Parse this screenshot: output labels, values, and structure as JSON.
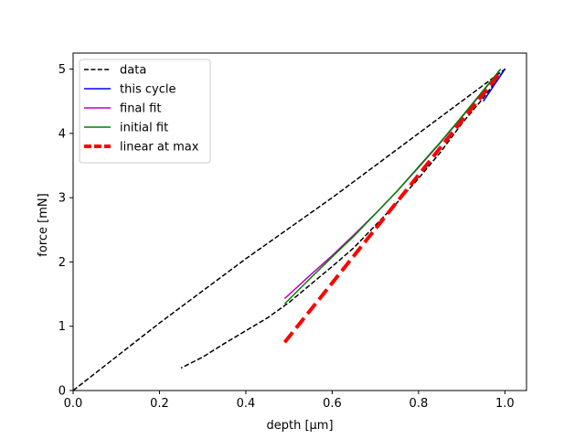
{
  "chart_data": {
    "type": "line",
    "title": "",
    "xlabel": "depth [µm]",
    "ylabel": "force [mN]",
    "xlim": [
      0.0,
      1.05
    ],
    "ylim": [
      0,
      5.25
    ],
    "xticks": [
      0.0,
      0.2,
      0.4,
      0.6,
      0.8,
      1.0
    ],
    "xtick_labels": [
      "0.0",
      "0.2",
      "0.4",
      "0.6",
      "0.8",
      "1.0"
    ],
    "yticks": [
      0,
      1,
      2,
      3,
      4,
      5
    ],
    "ytick_labels": [
      "0",
      "1",
      "2",
      "3",
      "4",
      "5"
    ],
    "grid": false,
    "legend_position": "upper-left",
    "series": [
      {
        "name": "data",
        "color": "#000000",
        "style": "dashed",
        "x": [
          0.0,
          0.2,
          0.4,
          0.6,
          0.8,
          1.0,
          0.95,
          0.9,
          0.85,
          0.8,
          0.75,
          0.7,
          0.65,
          0.6,
          0.55,
          0.5,
          0.45,
          0.4,
          0.35,
          0.3,
          0.25
        ],
        "y": [
          0.0,
          1.05,
          2.05,
          3.0,
          4.0,
          5.0,
          4.55,
          4.15,
          3.7,
          3.3,
          2.92,
          2.57,
          2.22,
          1.93,
          1.65,
          1.37,
          1.13,
          0.93,
          0.73,
          0.52,
          0.35
        ]
      },
      {
        "name": "this cycle",
        "color": "#0000ff",
        "style": "solid",
        "x": [
          0.95,
          1.0
        ],
        "y": [
          4.5,
          5.0
        ]
      },
      {
        "name": "final fit",
        "color": "#bf00bf",
        "style": "solid",
        "x": [
          0.49,
          0.55,
          0.6,
          0.65,
          0.7,
          0.75,
          0.8,
          0.85,
          0.9,
          0.95,
          0.99
        ],
        "y": [
          1.43,
          1.8,
          2.1,
          2.42,
          2.75,
          3.1,
          3.47,
          3.85,
          4.25,
          4.66,
          5.0
        ]
      },
      {
        "name": "initial fit",
        "color": "#008000",
        "style": "solid",
        "x": [
          0.49,
          0.55,
          0.6,
          0.65,
          0.7,
          0.75,
          0.8,
          0.85,
          0.9,
          0.95,
          0.99
        ],
        "y": [
          1.35,
          1.75,
          2.08,
          2.4,
          2.75,
          3.1,
          3.48,
          3.86,
          4.26,
          4.67,
          5.0
        ]
      },
      {
        "name": "linear at max",
        "color": "#ff0000",
        "style": "bold-dashed",
        "x": [
          0.49,
          0.99
        ],
        "y": [
          0.75,
          4.95
        ]
      }
    ]
  }
}
